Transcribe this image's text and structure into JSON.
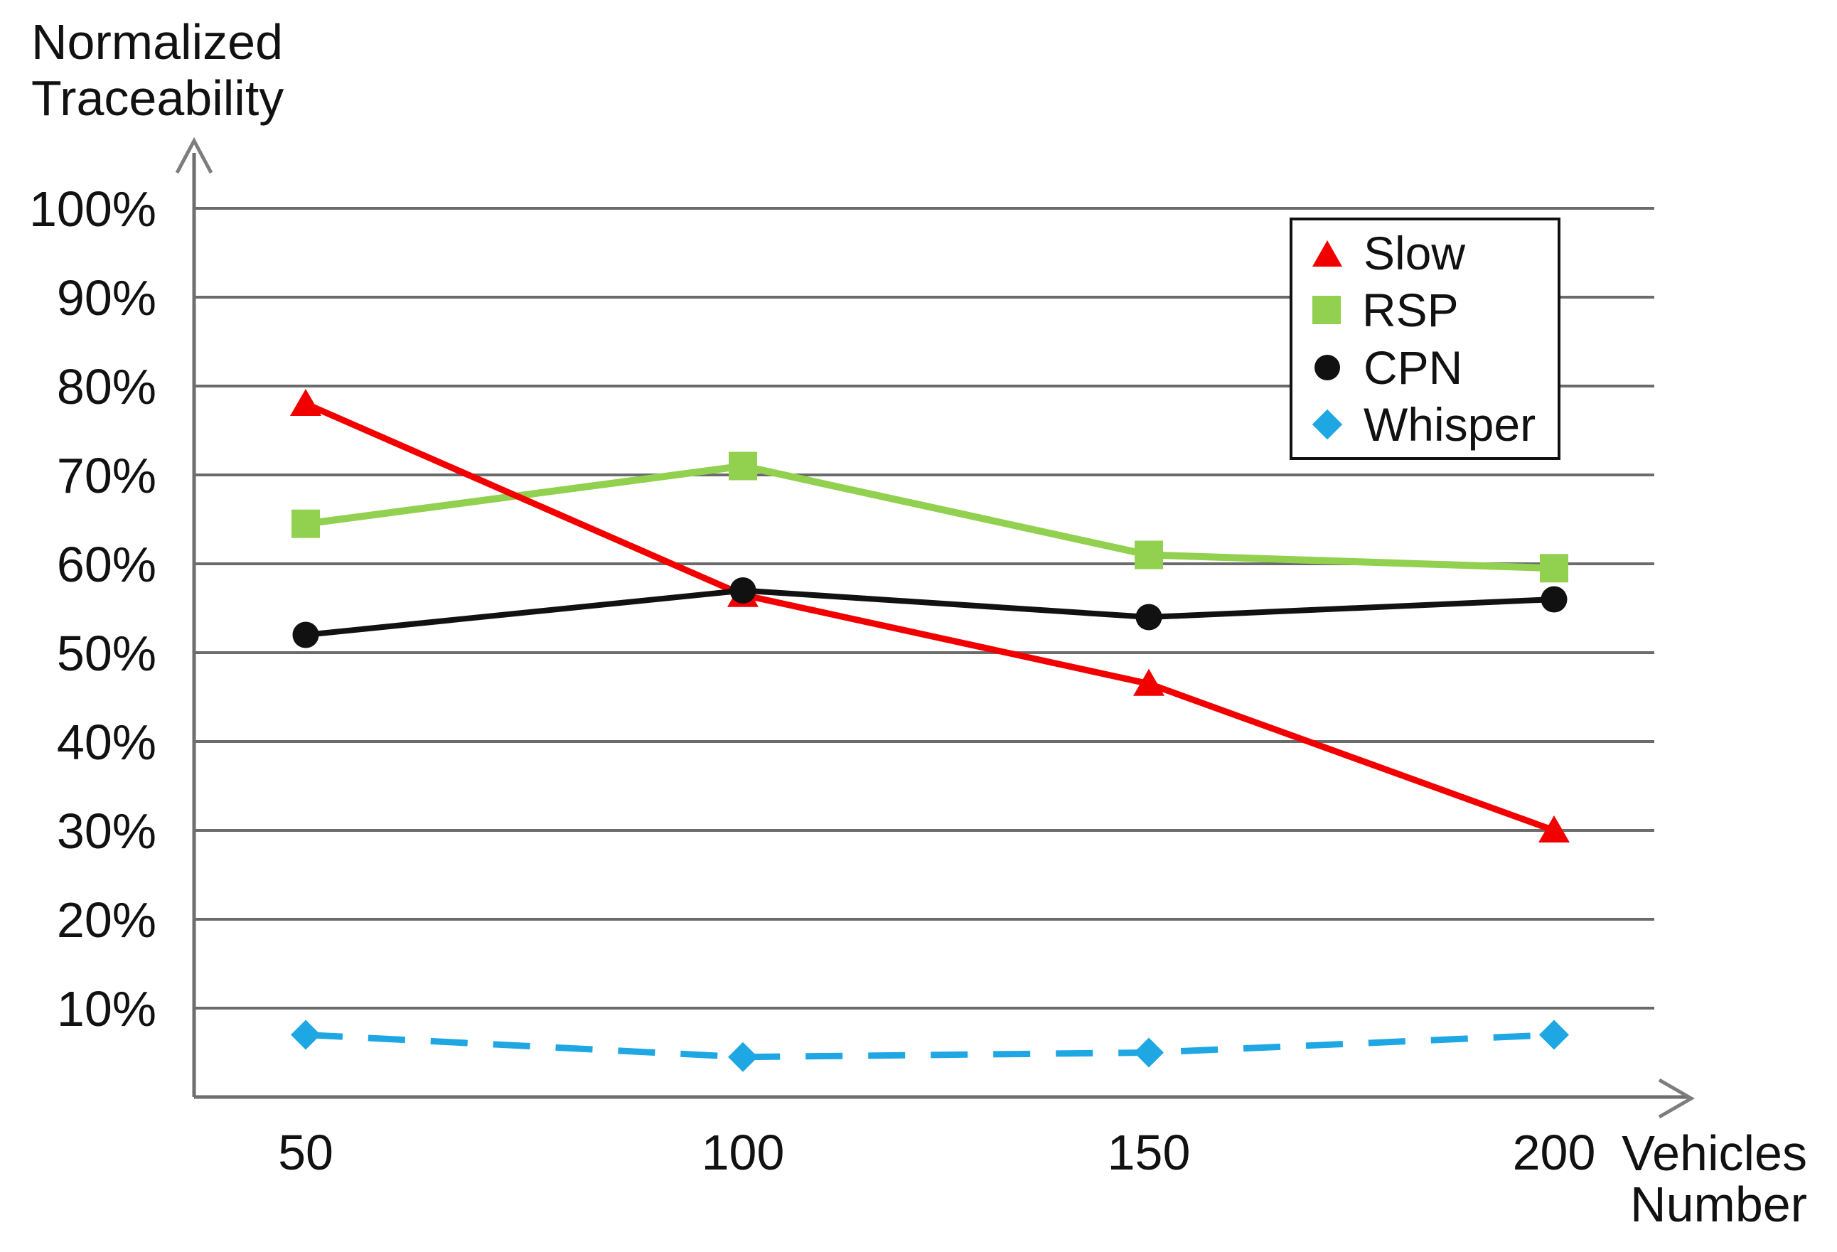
{
  "y_axis_label_lines": [
    "Normalized",
    "Traceability"
  ],
  "x_axis_label_lines": [
    "Vehicles",
    "Number"
  ],
  "chart_data": {
    "type": "line",
    "title": "",
    "ylabel": "Normalized Traceability",
    "xlabel": "Vehicles Number",
    "categories": [
      "50",
      "100",
      "150",
      "200"
    ],
    "y_tick_labels": [
      "100%",
      "90%",
      "80%",
      "70%",
      "60%",
      "50%",
      "40%",
      "30%",
      "20%",
      "10%"
    ],
    "y_tick_values": [
      100,
      90,
      80,
      70,
      60,
      50,
      40,
      30,
      20,
      10
    ],
    "ylim": [
      0,
      100
    ],
    "grid": "horizontal-only",
    "legend_position": "top-right",
    "legend_order": [
      "Slow",
      "RSP",
      "CPN",
      "Whisper"
    ],
    "series": [
      {
        "name": "Slow",
        "color": "#f20000",
        "marker": "triangle",
        "line_style": "solid",
        "values": [
          78,
          56.5,
          46.5,
          30
        ]
      },
      {
        "name": "RSP",
        "color": "#92d050",
        "marker": "square",
        "line_style": "solid",
        "values": [
          64.5,
          71,
          61,
          59.5
        ]
      },
      {
        "name": "CPN",
        "color": "#111111",
        "marker": "circle",
        "line_style": "solid",
        "values": [
          52,
          57,
          54,
          56
        ]
      },
      {
        "name": "Whisper",
        "color": "#1ea7e2",
        "marker": "diamond",
        "line_style": "dashed",
        "values": [
          7,
          4.5,
          5,
          7
        ]
      }
    ],
    "grid_color": "#6b6b6b",
    "axis_color": "#6e6e6e",
    "arrow_color": "#7d7d7d",
    "text_color": "#111111"
  }
}
